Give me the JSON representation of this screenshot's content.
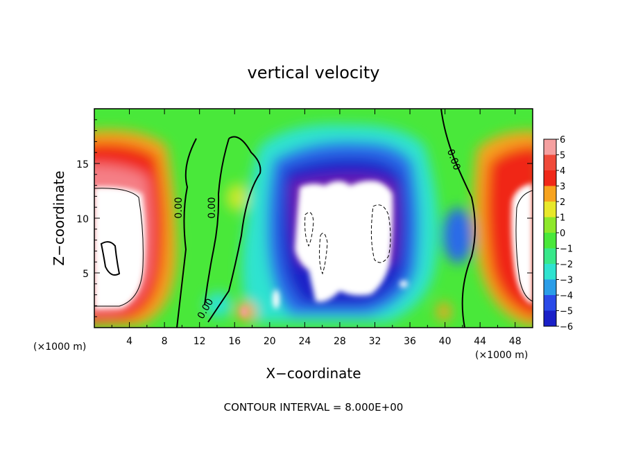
{
  "chart_data": {
    "type": "heatmap",
    "title": "vertical velocity",
    "xlabel": "X−coordinate",
    "ylabel": "Z−coordinate",
    "x_unit_left": "(×1000 m)",
    "x_unit_right": "(×1000 m)",
    "xlim": [
      0,
      50
    ],
    "ylim": [
      0,
      20
    ],
    "x_ticks": [
      4,
      8,
      12,
      16,
      20,
      24,
      28,
      32,
      36,
      40,
      44,
      48
    ],
    "y_ticks": [
      5,
      10,
      15
    ],
    "colorbar": {
      "min": -6,
      "max": 6,
      "ticks": [
        6,
        5,
        4,
        3,
        2,
        1,
        0,
        -1,
        -2,
        -3,
        -4,
        -5,
        -6
      ],
      "tick_labels": [
        "6",
        "5",
        "4",
        "3",
        "2",
        "1",
        "0",
        "−1",
        "−2",
        "−3",
        "−4",
        "−5",
        "−6"
      ]
    },
    "contour_labels": [
      "0.00",
      "0.00",
      "0.00",
      "0.00"
    ],
    "contour_interval_text": "CONTOUR INTERVAL = 8.000E+00"
  }
}
